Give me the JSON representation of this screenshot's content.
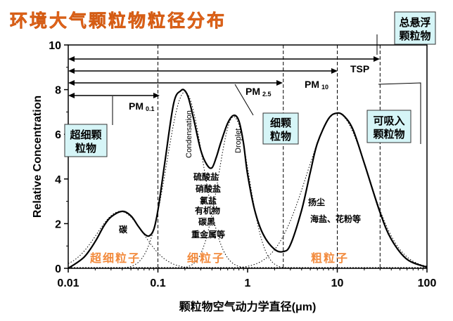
{
  "title": "环境大气颗粒物粒径分布",
  "chart_data": {
    "type": "line",
    "xscale": "log",
    "xlabel": "颗粒物空气动力学直径(μm)",
    "ylabel": "Relative Concentration",
    "xlim": [
      0.01,
      100
    ],
    "ylim": [
      0,
      10
    ],
    "x_ticks": [
      "0.01",
      "0.1",
      "1",
      "10",
      "100"
    ],
    "y_ticks": [
      "0",
      "2",
      "4",
      "6",
      "8",
      "10"
    ],
    "series": [
      {
        "x": [
          0.01,
          0.015,
          0.02,
          0.025,
          0.03,
          0.04,
          0.05,
          0.06,
          0.07,
          0.08,
          0.09,
          0.1,
          0.12,
          0.15,
          0.18,
          0.2,
          0.22,
          0.25,
          0.3,
          0.35,
          0.4,
          0.45,
          0.5,
          0.6,
          0.7,
          0.8,
          0.9,
          1.0,
          1.2,
          1.5,
          2.0,
          2.5,
          3.0,
          4.0,
          5.0,
          6.0,
          8.0,
          10.0,
          12.0,
          15.0,
          20.0,
          30.0,
          40.0,
          60.0,
          100.0
        ],
        "y": [
          0.0,
          0.5,
          1.2,
          1.9,
          2.3,
          2.55,
          2.35,
          1.9,
          1.55,
          1.45,
          1.75,
          2.6,
          4.8,
          7.4,
          7.95,
          7.95,
          7.6,
          6.7,
          5.3,
          4.65,
          4.5,
          5.0,
          5.6,
          6.5,
          6.85,
          6.6,
          5.6,
          4.2,
          2.6,
          1.5,
          0.85,
          0.75,
          1.05,
          2.6,
          4.3,
          5.6,
          6.7,
          6.95,
          6.8,
          6.2,
          4.7,
          2.5,
          1.3,
          0.4,
          0.05
        ]
      }
    ],
    "annotations": {
      "pm_lines": [
        {
          "label": "PM",
          "sub": "0.1",
          "size": 0.1
        },
        {
          "label": "PM",
          "sub": "2.5",
          "size": 2.5
        },
        {
          "label": "PM",
          "sub": "10",
          "size": 10
        },
        {
          "label": "TSP",
          "sub": "",
          "size": 30
        }
      ],
      "boxes": {
        "tsp": "总悬浮\n颗粒物",
        "ultrafine": "超细颗\n粒物",
        "fine": "细颗\n粒物",
        "inhalable": "可吸入\n颗粒物"
      },
      "peak_labels": {
        "condensation": "Condensation",
        "droplet": "Droplet"
      },
      "components": {
        "carbon": "碳",
        "fine_list": [
          "硫酸盐",
          "硝酸盐",
          "氯盐",
          "有机物",
          "碳黑",
          "重金属等"
        ],
        "coarse_list": [
          "扬尘",
          "海盐、花粉等"
        ]
      },
      "regions": {
        "ultrafine": "超细粒子",
        "fine": "细粒子",
        "coarse": "粗粒子"
      }
    },
    "grid": false,
    "legend": "none"
  }
}
